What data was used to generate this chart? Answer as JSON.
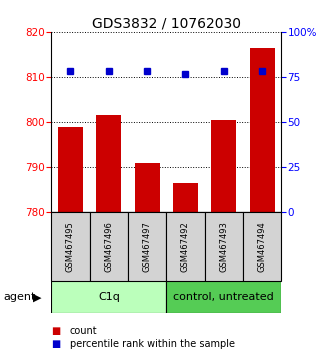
{
  "title": "GDS3832 / 10762030",
  "samples": [
    "GSM467495",
    "GSM467496",
    "GSM467497",
    "GSM467492",
    "GSM467493",
    "GSM467494"
  ],
  "count_values": [
    799.0,
    801.5,
    791.0,
    786.5,
    800.5,
    816.5
  ],
  "percentile_values": [
    78.5,
    78.5,
    78.5,
    76.5,
    78.5,
    78.5
  ],
  "ylim_left": [
    780,
    820
  ],
  "ylim_right": [
    0,
    100
  ],
  "yticks_left": [
    780,
    790,
    800,
    810,
    820
  ],
  "yticks_right": [
    0,
    25,
    50,
    75,
    100
  ],
  "ytick_labels_right": [
    "0",
    "25",
    "50",
    "75",
    "100%"
  ],
  "bar_color": "#cc0000",
  "dot_color": "#0000cc",
  "group1_label": "C1q",
  "group2_label": "control, untreated",
  "group1_indices": [
    0,
    1,
    2
  ],
  "group2_indices": [
    3,
    4,
    5
  ],
  "group1_color": "#bbffbb",
  "group2_color": "#55cc55",
  "agent_label": "agent",
  "legend_count_label": "count",
  "legend_percentile_label": "percentile rank within the sample",
  "title_fontsize": 10,
  "tick_fontsize": 7.5,
  "bar_width": 0.65
}
